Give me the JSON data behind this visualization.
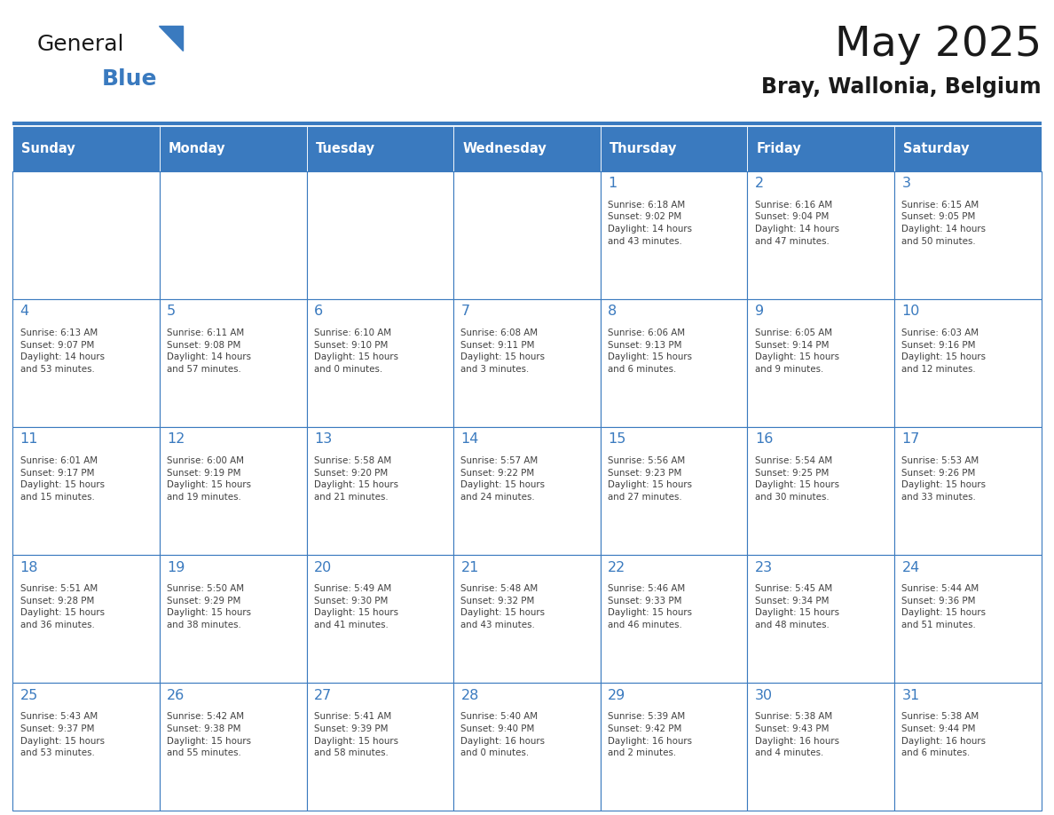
{
  "title": "May 2025",
  "subtitle": "Bray, Wallonia, Belgium",
  "header_color": "#3a7abf",
  "header_text_color": "#ffffff",
  "cell_bg_color": "#ffffff",
  "border_color": "#3a7abf",
  "day_number_color": "#3a7abf",
  "text_color": "#404040",
  "logo_general_color": "#1a1a1a",
  "logo_blue_color": "#3a7abf",
  "days_of_week": [
    "Sunday",
    "Monday",
    "Tuesday",
    "Wednesday",
    "Thursday",
    "Friday",
    "Saturday"
  ],
  "weeks": [
    [
      {
        "day": "",
        "info": ""
      },
      {
        "day": "",
        "info": ""
      },
      {
        "day": "",
        "info": ""
      },
      {
        "day": "",
        "info": ""
      },
      {
        "day": "1",
        "info": "Sunrise: 6:18 AM\nSunset: 9:02 PM\nDaylight: 14 hours\nand 43 minutes."
      },
      {
        "day": "2",
        "info": "Sunrise: 6:16 AM\nSunset: 9:04 PM\nDaylight: 14 hours\nand 47 minutes."
      },
      {
        "day": "3",
        "info": "Sunrise: 6:15 AM\nSunset: 9:05 PM\nDaylight: 14 hours\nand 50 minutes."
      }
    ],
    [
      {
        "day": "4",
        "info": "Sunrise: 6:13 AM\nSunset: 9:07 PM\nDaylight: 14 hours\nand 53 minutes."
      },
      {
        "day": "5",
        "info": "Sunrise: 6:11 AM\nSunset: 9:08 PM\nDaylight: 14 hours\nand 57 minutes."
      },
      {
        "day": "6",
        "info": "Sunrise: 6:10 AM\nSunset: 9:10 PM\nDaylight: 15 hours\nand 0 minutes."
      },
      {
        "day": "7",
        "info": "Sunrise: 6:08 AM\nSunset: 9:11 PM\nDaylight: 15 hours\nand 3 minutes."
      },
      {
        "day": "8",
        "info": "Sunrise: 6:06 AM\nSunset: 9:13 PM\nDaylight: 15 hours\nand 6 minutes."
      },
      {
        "day": "9",
        "info": "Sunrise: 6:05 AM\nSunset: 9:14 PM\nDaylight: 15 hours\nand 9 minutes."
      },
      {
        "day": "10",
        "info": "Sunrise: 6:03 AM\nSunset: 9:16 PM\nDaylight: 15 hours\nand 12 minutes."
      }
    ],
    [
      {
        "day": "11",
        "info": "Sunrise: 6:01 AM\nSunset: 9:17 PM\nDaylight: 15 hours\nand 15 minutes."
      },
      {
        "day": "12",
        "info": "Sunrise: 6:00 AM\nSunset: 9:19 PM\nDaylight: 15 hours\nand 19 minutes."
      },
      {
        "day": "13",
        "info": "Sunrise: 5:58 AM\nSunset: 9:20 PM\nDaylight: 15 hours\nand 21 minutes."
      },
      {
        "day": "14",
        "info": "Sunrise: 5:57 AM\nSunset: 9:22 PM\nDaylight: 15 hours\nand 24 minutes."
      },
      {
        "day": "15",
        "info": "Sunrise: 5:56 AM\nSunset: 9:23 PM\nDaylight: 15 hours\nand 27 minutes."
      },
      {
        "day": "16",
        "info": "Sunrise: 5:54 AM\nSunset: 9:25 PM\nDaylight: 15 hours\nand 30 minutes."
      },
      {
        "day": "17",
        "info": "Sunrise: 5:53 AM\nSunset: 9:26 PM\nDaylight: 15 hours\nand 33 minutes."
      }
    ],
    [
      {
        "day": "18",
        "info": "Sunrise: 5:51 AM\nSunset: 9:28 PM\nDaylight: 15 hours\nand 36 minutes."
      },
      {
        "day": "19",
        "info": "Sunrise: 5:50 AM\nSunset: 9:29 PM\nDaylight: 15 hours\nand 38 minutes."
      },
      {
        "day": "20",
        "info": "Sunrise: 5:49 AM\nSunset: 9:30 PM\nDaylight: 15 hours\nand 41 minutes."
      },
      {
        "day": "21",
        "info": "Sunrise: 5:48 AM\nSunset: 9:32 PM\nDaylight: 15 hours\nand 43 minutes."
      },
      {
        "day": "22",
        "info": "Sunrise: 5:46 AM\nSunset: 9:33 PM\nDaylight: 15 hours\nand 46 minutes."
      },
      {
        "day": "23",
        "info": "Sunrise: 5:45 AM\nSunset: 9:34 PM\nDaylight: 15 hours\nand 48 minutes."
      },
      {
        "day": "24",
        "info": "Sunrise: 5:44 AM\nSunset: 9:36 PM\nDaylight: 15 hours\nand 51 minutes."
      }
    ],
    [
      {
        "day": "25",
        "info": "Sunrise: 5:43 AM\nSunset: 9:37 PM\nDaylight: 15 hours\nand 53 minutes."
      },
      {
        "day": "26",
        "info": "Sunrise: 5:42 AM\nSunset: 9:38 PM\nDaylight: 15 hours\nand 55 minutes."
      },
      {
        "day": "27",
        "info": "Sunrise: 5:41 AM\nSunset: 9:39 PM\nDaylight: 15 hours\nand 58 minutes."
      },
      {
        "day": "28",
        "info": "Sunrise: 5:40 AM\nSunset: 9:40 PM\nDaylight: 16 hours\nand 0 minutes."
      },
      {
        "day": "29",
        "info": "Sunrise: 5:39 AM\nSunset: 9:42 PM\nDaylight: 16 hours\nand 2 minutes."
      },
      {
        "day": "30",
        "info": "Sunrise: 5:38 AM\nSunset: 9:43 PM\nDaylight: 16 hours\nand 4 minutes."
      },
      {
        "day": "31",
        "info": "Sunrise: 5:38 AM\nSunset: 9:44 PM\nDaylight: 16 hours\nand 6 minutes."
      }
    ]
  ],
  "figure_width": 11.88,
  "figure_height": 9.18
}
